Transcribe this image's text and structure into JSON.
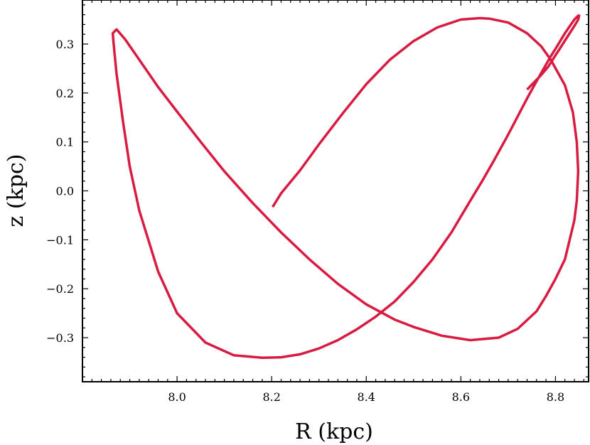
{
  "chart_data": {
    "type": "line",
    "xlabel": "R (kpc)",
    "ylabel": "z (kpc)",
    "xlim": [
      7.8,
      8.87
    ],
    "ylim": [
      -0.39,
      0.39
    ],
    "grid": false,
    "xticks": [
      8.0,
      8.2,
      8.4,
      8.6,
      8.8
    ],
    "xtick_labels": [
      "8.0",
      "8.2",
      "8.4",
      "8.6",
      "8.8"
    ],
    "yticks": [
      -0.3,
      -0.2,
      -0.1,
      0.0,
      0.1,
      0.2,
      0.3
    ],
    "ytick_labels": [
      "−0.3",
      "−0.2",
      "−0.1",
      "0.0",
      "0.1",
      "0.2",
      "0.3"
    ],
    "series": [
      {
        "color": "#d81b40",
        "x": [
          8.202,
          8.22,
          8.26,
          8.3,
          8.35,
          8.4,
          8.45,
          8.5,
          8.55,
          8.6,
          8.64,
          8.66,
          8.7,
          8.74,
          8.77,
          8.79,
          8.82,
          8.837,
          8.845,
          8.848,
          8.845,
          8.84,
          8.83,
          8.82,
          8.8,
          8.78,
          8.76,
          8.72,
          8.68,
          8.62,
          8.56,
          8.5,
          8.46,
          8.4,
          8.34,
          8.28,
          8.22,
          8.16,
          8.1,
          8.05,
          8.0,
          7.96,
          7.92,
          7.89,
          7.872,
          7.864,
          7.866,
          7.872,
          7.886,
          7.9,
          7.92,
          7.96,
          8.0,
          8.06,
          8.12,
          8.18,
          8.22,
          8.26,
          8.3,
          8.34,
          8.38,
          8.42,
          8.46,
          8.5,
          8.54,
          8.58,
          8.62,
          8.645,
          8.67,
          8.7,
          8.72,
          8.74,
          8.76,
          8.78,
          8.79,
          8.8,
          8.82,
          8.84,
          8.848,
          8.85,
          8.848,
          8.84,
          8.81,
          8.8,
          8.785,
          8.77,
          8.74
        ],
        "y": [
          -0.033,
          -0.005,
          0.042,
          0.095,
          0.158,
          0.218,
          0.268,
          0.306,
          0.334,
          0.35,
          0.353,
          0.352,
          0.344,
          0.322,
          0.295,
          0.268,
          0.216,
          0.16,
          0.1,
          0.04,
          -0.02,
          -0.06,
          -0.1,
          -0.14,
          -0.18,
          -0.215,
          -0.246,
          -0.282,
          -0.3,
          -0.305,
          -0.296,
          -0.278,
          -0.263,
          -0.232,
          -0.19,
          -0.14,
          -0.085,
          -0.025,
          0.04,
          0.1,
          0.162,
          0.212,
          0.268,
          0.31,
          0.33,
          0.322,
          0.3,
          0.24,
          0.14,
          0.05,
          -0.04,
          -0.165,
          -0.25,
          -0.31,
          -0.336,
          -0.341,
          -0.34,
          -0.334,
          -0.322,
          -0.305,
          -0.283,
          -0.257,
          -0.226,
          -0.186,
          -0.14,
          -0.085,
          -0.02,
          0.02,
          0.062,
          0.115,
          0.152,
          0.189,
          0.224,
          0.258,
          0.275,
          0.29,
          0.322,
          0.35,
          0.358,
          0.358,
          0.35,
          0.337,
          0.292,
          0.277,
          0.254,
          0.237,
          0.207
        ]
      }
    ]
  }
}
